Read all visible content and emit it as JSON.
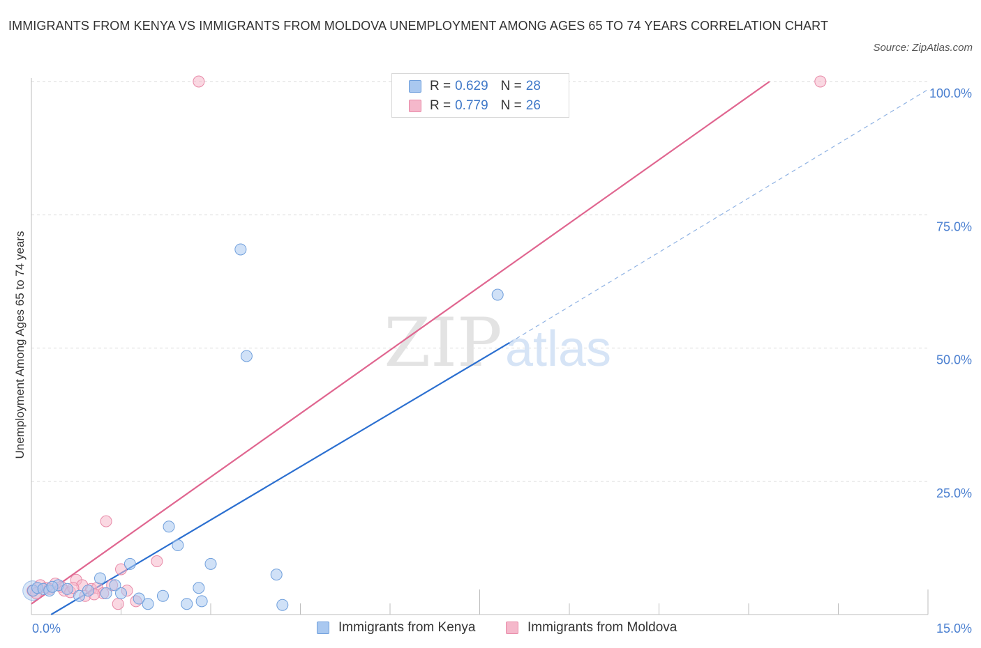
{
  "title": "IMMIGRANTS FROM KENYA VS IMMIGRANTS FROM MOLDOVA UNEMPLOYMENT AMONG AGES 65 TO 74 YEARS CORRELATION CHART",
  "source": "Source: ZipAtlas.com",
  "watermark": {
    "zip": "ZIP",
    "atlas": "atlas"
  },
  "colors": {
    "kenya_fill": "#a9c8f0",
    "kenya_stroke": "#6f9fdc",
    "kenya_line": "#2b6fd0",
    "moldova_fill": "#f5b8cb",
    "moldova_stroke": "#e88aa8",
    "moldova_line": "#e06690",
    "tick_text": "#4a7fd0",
    "grid": "#d9d9d9"
  },
  "legend": {
    "r_label": "R =",
    "n_label": "N =",
    "kenya": {
      "r": "0.629",
      "n": "28"
    },
    "moldova": {
      "r": "0.779",
      "n": "26"
    }
  },
  "chart_data": {
    "type": "scatter",
    "title": "IMMIGRANTS FROM KENYA VS IMMIGRANTS FROM MOLDOVA UNEMPLOYMENT AMONG AGES 65 TO 74 YEARS CORRELATION CHART",
    "xlabel": "",
    "ylabel": "Unemployment Among Ages 65 to 74 years",
    "xlim": [
      0,
      15
    ],
    "ylim": [
      0,
      100
    ],
    "x_tick_labels": [
      "0.0%",
      "15.0%"
    ],
    "y_ticks": [
      25,
      50,
      75,
      100
    ],
    "y_tick_labels": [
      "25.0%",
      "50.0%",
      "75.0%",
      "100.0%"
    ],
    "grid": true,
    "series": [
      {
        "name": "Immigrants from Kenya",
        "r": 0.629,
        "n": 28,
        "points": [
          [
            0.03,
            4.5
          ],
          [
            0.1,
            5.0
          ],
          [
            0.2,
            4.8
          ],
          [
            0.3,
            4.5
          ],
          [
            0.45,
            5.5
          ],
          [
            0.6,
            4.8
          ],
          [
            0.8,
            3.5
          ],
          [
            0.95,
            4.5
          ],
          [
            1.15,
            6.8
          ],
          [
            1.25,
            4.0
          ],
          [
            1.4,
            5.5
          ],
          [
            1.5,
            4.0
          ],
          [
            1.65,
            9.5
          ],
          [
            1.8,
            3.0
          ],
          [
            1.95,
            2.0
          ],
          [
            2.2,
            3.5
          ],
          [
            2.3,
            16.5
          ],
          [
            2.45,
            13.0
          ],
          [
            2.6,
            2.0
          ],
          [
            2.8,
            5.0
          ],
          [
            2.85,
            2.5
          ],
          [
            3.0,
            9.5
          ],
          [
            3.5,
            68.5
          ],
          [
            3.6,
            48.5
          ],
          [
            4.1,
            7.5
          ],
          [
            4.2,
            1.8
          ],
          [
            7.8,
            60.0
          ],
          [
            0.35,
            5.2
          ]
        ],
        "trend": {
          "x0": 0.33,
          "y0": 0.0,
          "x1": 8.0,
          "y1": 51.0,
          "dashed_to_x": 15.0,
          "dashed_to_y": 98.5
        }
      },
      {
        "name": "Immigrants from Moldova",
        "r": 0.779,
        "n": 26,
        "points": [
          [
            0.02,
            4.5
          ],
          [
            0.15,
            5.5
          ],
          [
            0.25,
            5.0
          ],
          [
            0.4,
            5.8
          ],
          [
            0.5,
            5.2
          ],
          [
            0.55,
            4.5
          ],
          [
            0.65,
            4.2
          ],
          [
            0.75,
            6.5
          ],
          [
            0.85,
            5.5
          ],
          [
            0.9,
            3.5
          ],
          [
            1.0,
            4.8
          ],
          [
            1.1,
            5.0
          ],
          [
            1.2,
            4.0
          ],
          [
            1.25,
            17.5
          ],
          [
            1.35,
            5.5
          ],
          [
            1.45,
            2.0
          ],
          [
            1.5,
            8.5
          ],
          [
            1.6,
            4.5
          ],
          [
            1.75,
            2.5
          ],
          [
            2.1,
            10.0
          ],
          [
            2.8,
            100.0
          ],
          [
            13.2,
            100.0
          ],
          [
            0.08,
            4.0
          ],
          [
            0.3,
            4.8
          ],
          [
            0.7,
            5.0
          ],
          [
            1.05,
            3.8
          ]
        ],
        "trend": {
          "x0": 0.0,
          "y0": 2.0,
          "x1": 12.35,
          "y1": 100.0
        }
      }
    ]
  },
  "bottom_legend": {
    "kenya": "Immigrants from Kenya",
    "moldova": "Immigrants from Moldova"
  }
}
